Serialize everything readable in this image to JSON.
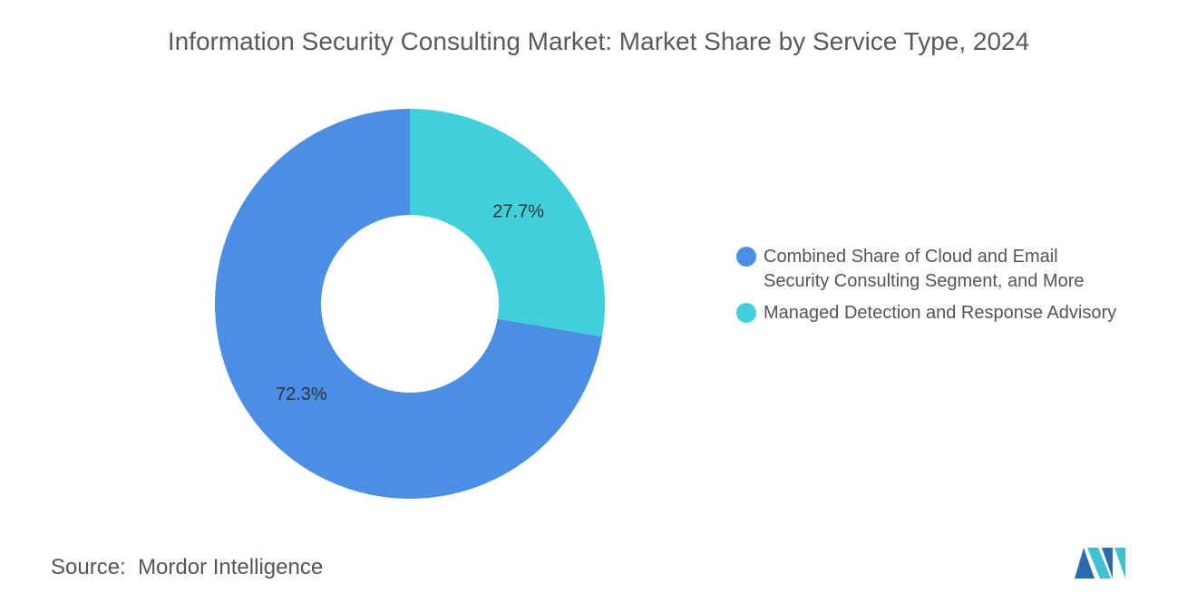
{
  "chart_data": {
    "type": "pie",
    "title": "Information Security Consulting Market: Market Share by Service Type, 2024",
    "series": [
      {
        "name": "Combined Share of Cloud and Email Security Consulting Segment, and More",
        "color": "#4a8fe3",
        "values": [
          72.3
        ],
        "value_labels": [
          "72.3%"
        ]
      },
      {
        "name": "Managed Detection and Response Advisory",
        "color": "#3fd0da",
        "values": [
          27.7
        ],
        "value_labels": [
          "27.7%"
        ]
      }
    ]
  },
  "source": {
    "label": "Source:",
    "text": "Mordor Intelligence"
  }
}
